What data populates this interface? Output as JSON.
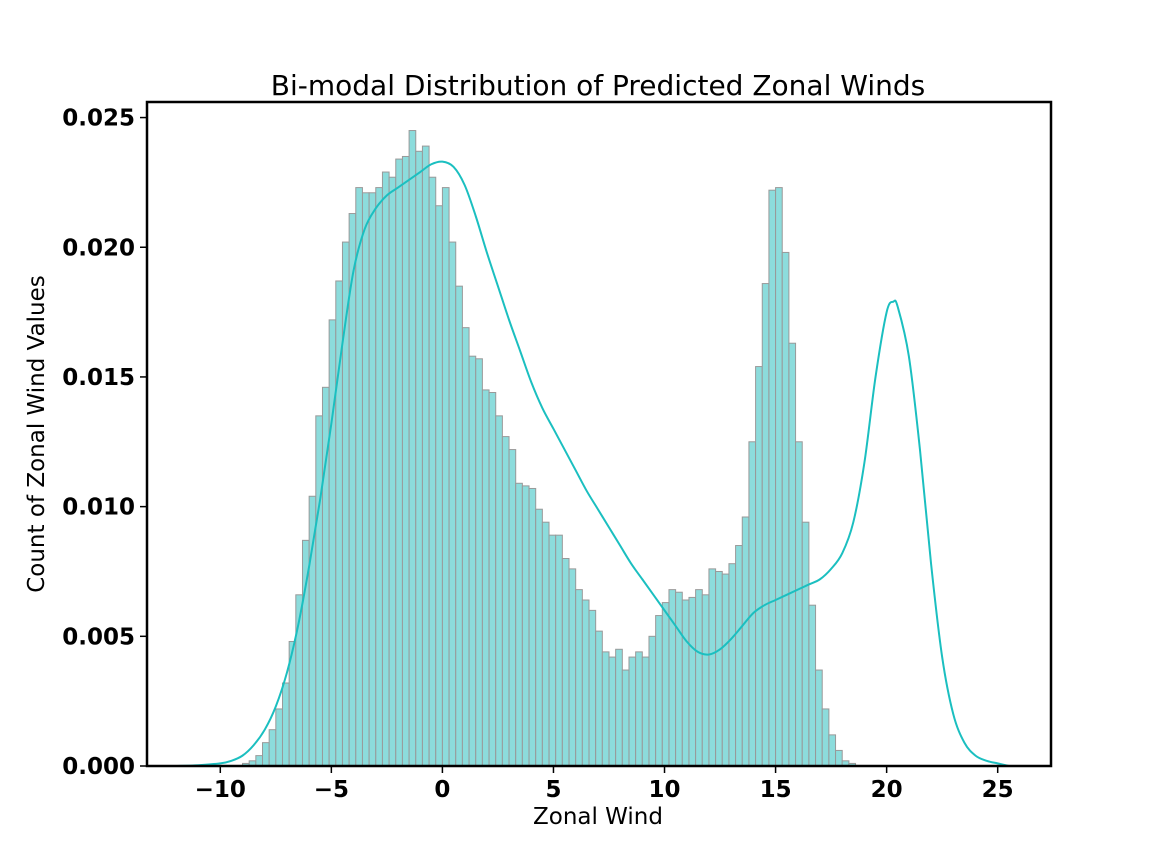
{
  "colors": {
    "bar_fill": "#8cdcdc",
    "bar_edge": "#999999",
    "kde_line": "#1bbfc0",
    "frame": "#000000"
  },
  "chart_data": {
    "type": "bar",
    "title": "Bi-modal Distribution of Predicted Zonal Winds",
    "xlabel": "Zonal Wind",
    "ylabel": "Count of Zonal Wind Values",
    "xlim": [
      -13.3,
      27.4
    ],
    "ylim": [
      0,
      0.0256
    ],
    "x_ticks": [
      -10,
      -5,
      0,
      5,
      10,
      15,
      20,
      25
    ],
    "x_tick_labels": [
      "−10",
      "−5",
      "0",
      "5",
      "10",
      "15",
      "20",
      "25"
    ],
    "y_ticks": [
      0,
      0.005,
      0.01,
      0.015,
      0.02,
      0.025
    ],
    "y_tick_labels": [
      "0.000",
      "0.005",
      "0.010",
      "0.015",
      "0.020",
      "0.025"
    ],
    "grid": false,
    "bin_start": -9,
    "bin_width": 0.3,
    "values": [
      0.0001,
      0.0002,
      0.0004,
      0.0009,
      0.0014,
      0.0022,
      0.0032,
      0.0048,
      0.0066,
      0.0087,
      0.0104,
      0.0135,
      0.0146,
      0.0172,
      0.0187,
      0.0202,
      0.0213,
      0.0223,
      0.0221,
      0.0221,
      0.0223,
      0.0229,
      0.0227,
      0.0234,
      0.0235,
      0.0245,
      0.0237,
      0.0239,
      0.0227,
      0.0216,
      0.0223,
      0.0202,
      0.0185,
      0.0169,
      0.0158,
      0.0157,
      0.0145,
      0.0144,
      0.0135,
      0.0127,
      0.0122,
      0.0109,
      0.0108,
      0.0107,
      0.0099,
      0.0094,
      0.0089,
      0.0089,
      0.008,
      0.0076,
      0.0068,
      0.0064,
      0.006,
      0.0052,
      0.0044,
      0.0042,
      0.0045,
      0.0037,
      0.0042,
      0.0044,
      0.0042,
      0.005,
      0.0058,
      0.0063,
      0.0068,
      0.0067,
      0.0064,
      0.0065,
      0.0068,
      0.0066,
      0.0076,
      0.0075,
      0.0074,
      0.0078,
      0.0085,
      0.0096,
      0.0125,
      0.0154,
      0.0186,
      0.0222,
      0.0223,
      0.0198,
      0.0163,
      0.0125,
      0.0094,
      0.0062,
      0.0037,
      0.0022,
      0.0012,
      0.0006,
      0.0002,
      0.0001
    ],
    "kde": {
      "x": [
        -12,
        -11,
        -10,
        -9.5,
        -9,
        -8.5,
        -8,
        -7.5,
        -7,
        -6.5,
        -6,
        -5.5,
        -5,
        -4.5,
        -4,
        -3.5,
        -3,
        -2.5,
        -2,
        -1.5,
        -1,
        -0.5,
        0,
        0.5,
        1,
        1.5,
        2,
        2.5,
        3,
        3.5,
        4,
        4.5,
        5,
        5.5,
        6,
        6.5,
        7,
        7.5,
        8,
        8.5,
        9,
        9.5,
        10,
        10.5,
        11,
        11.5,
        12,
        12.5,
        13,
        13.5,
        14,
        14.5,
        15,
        15.5,
        16,
        16.5,
        17,
        17.5,
        18,
        18.5,
        19,
        19.5,
        20,
        20.3,
        20.5,
        21,
        21.5,
        22,
        22.5,
        23,
        23.5,
        24,
        24.5,
        25,
        25.5
      ],
      "y": [
        0,
        3e-05,
        0.0001,
        0.0002,
        0.0004,
        0.0008,
        0.0014,
        0.0023,
        0.0036,
        0.0054,
        0.0077,
        0.0103,
        0.0132,
        0.0163,
        0.0191,
        0.0207,
        0.0215,
        0.022,
        0.0223,
        0.0226,
        0.0229,
        0.0232,
        0.0233,
        0.0231,
        0.0224,
        0.0212,
        0.0198,
        0.0185,
        0.0172,
        0.016,
        0.0148,
        0.0138,
        0.013,
        0.0122,
        0.0114,
        0.0106,
        0.0099,
        0.0092,
        0.0085,
        0.0078,
        0.0072,
        0.0066,
        0.006,
        0.0054,
        0.0048,
        0.0044,
        0.0043,
        0.0045,
        0.0049,
        0.0054,
        0.0059,
        0.0062,
        0.0064,
        0.0066,
        0.0068,
        0.007,
        0.0072,
        0.0076,
        0.0082,
        0.0094,
        0.0117,
        0.015,
        0.0175,
        0.0179,
        0.0177,
        0.0158,
        0.0122,
        0.0078,
        0.0042,
        0.002,
        0.0009,
        0.0004,
        0.0002,
        0.0001,
        0
      ]
    }
  }
}
